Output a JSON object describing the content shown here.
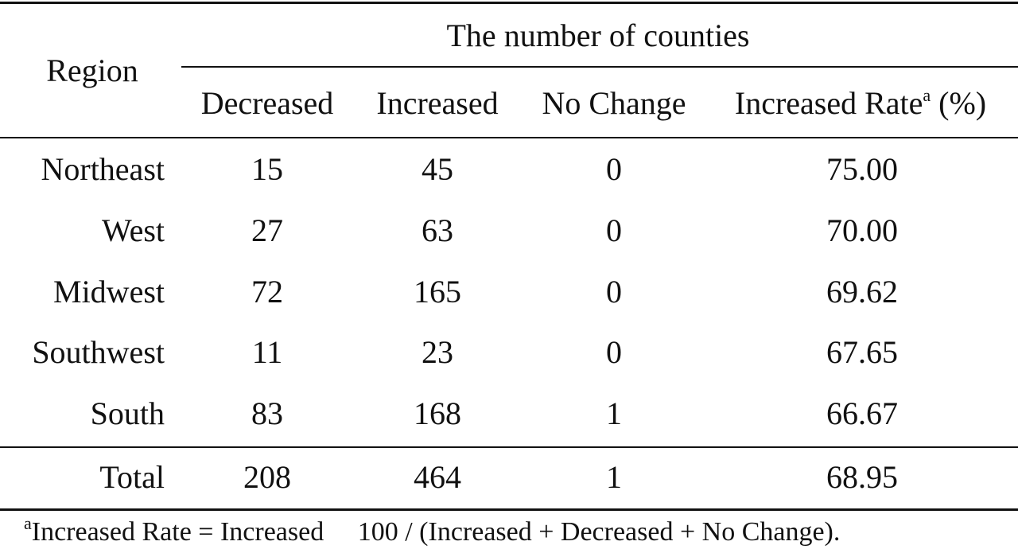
{
  "table": {
    "group_header": "The number of counties",
    "region_header": "Region",
    "columns": {
      "decreased": "Decreased",
      "increased": "Increased",
      "no_change": "No Change",
      "rate": "Increased Rate",
      "rate_marker": "a",
      "rate_unit": "(%)"
    },
    "rows": [
      {
        "region": "Northeast",
        "decreased": "15",
        "increased": "45",
        "no_change": "0",
        "rate": "75.00"
      },
      {
        "region": "West",
        "decreased": "27",
        "increased": "63",
        "no_change": "0",
        "rate": "70.00"
      },
      {
        "region": "Midwest",
        "decreased": "72",
        "increased": "165",
        "no_change": "0",
        "rate": "69.62"
      },
      {
        "region": "Southwest",
        "decreased": "11",
        "increased": "23",
        "no_change": "0",
        "rate": "67.65"
      },
      {
        "region": "South",
        "decreased": "83",
        "increased": "168",
        "no_change": "1",
        "rate": "66.67"
      }
    ],
    "total": {
      "region": "Total",
      "decreased": "208",
      "increased": "464",
      "no_change": "1",
      "rate": "68.95"
    }
  },
  "footnote": {
    "marker": "a",
    "text": "Increased Rate = Increased     100 / (Increased + Decreased + No Change)."
  }
}
